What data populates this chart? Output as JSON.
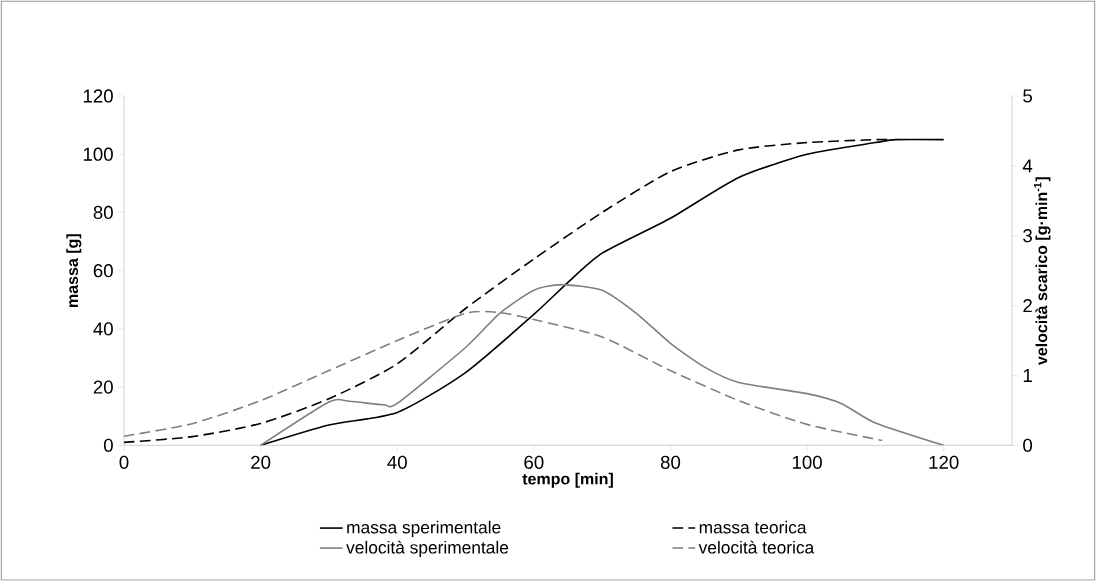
{
  "chart_data": {
    "type": "line",
    "xlabel": "tempo [min]",
    "ylabel": "massa [g]",
    "y2label": "velocità scarico [g·min$^{-1}$]",
    "xlim": [
      0,
      130
    ],
    "xticks": [
      0,
      20,
      40,
      60,
      80,
      100,
      120
    ],
    "ylim": [
      0,
      120
    ],
    "yticks": [
      0,
      20,
      40,
      60,
      80,
      100,
      120
    ],
    "y2lim": [
      0,
      5
    ],
    "y2ticks": [
      0,
      1,
      2,
      3,
      4,
      5
    ],
    "legend": "bottom",
    "grid": false,
    "marker": "none",
    "series": [
      {
        "name": "massa sperimentale",
        "color": "#000000",
        "line_style": "solid",
        "x": [
          20,
          30,
          40,
          50,
          60,
          65,
          70,
          80,
          90,
          100,
          110,
          113,
          120
        ],
        "values": [
          0,
          7,
          11.3,
          25,
          45,
          56,
          66,
          78,
          92,
          100,
          104,
          105,
          105
        ]
      },
      {
        "name": "massa teorica",
        "color": "#000000",
        "line_style": "dashed",
        "x": [
          0,
          10,
          20,
          30,
          40,
          50,
          60,
          70,
          80,
          90,
          100,
          110,
          112
        ],
        "values": [
          1,
          3,
          7.5,
          16,
          28,
          47,
          64,
          80,
          94,
          101.5,
          104,
          105,
          105
        ]
      },
      {
        "name": "velocità sperimentale",
        "color": "#7f7f7f",
        "line_style": "solid",
        "axis": "y2",
        "x": [
          20,
          30,
          33,
          38,
          40,
          50,
          55,
          60,
          64,
          70,
          75,
          80,
          85,
          90,
          100,
          105,
          110,
          120
        ],
        "values": [
          0,
          0.62,
          0.63,
          0.58,
          0.6,
          1.4,
          1.89,
          2.22,
          2.3,
          2.22,
          1.89,
          1.46,
          1.12,
          0.9,
          0.74,
          0.6,
          0.32,
          0
        ]
      },
      {
        "name": "velocità teorica",
        "color": "#7f7f7f",
        "line_style": "dashed",
        "axis": "y2",
        "x": [
          0,
          10,
          20,
          30,
          40,
          50,
          55,
          60,
          70,
          80,
          90,
          100,
          111
        ],
        "values": [
          0.13,
          0.31,
          0.64,
          1.07,
          1.5,
          1.89,
          1.9,
          1.8,
          1.55,
          1.07,
          0.64,
          0.3,
          0.07
        ]
      }
    ]
  }
}
